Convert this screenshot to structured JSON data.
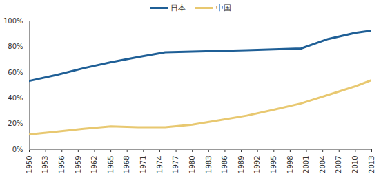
{
  "chart_data": {
    "type": "line",
    "legend": "top",
    "grid": false,
    "x": [
      1950,
      1955,
      1960,
      1965,
      1970,
      1975,
      1980,
      1985,
      1990,
      1995,
      2000,
      2005,
      2010,
      2013
    ],
    "series": [
      {
        "name": "日本",
        "color": "#1f5f96",
        "values": [
          53.4,
          58.0,
          63.3,
          67.9,
          71.9,
          75.7,
          76.2,
          76.7,
          77.3,
          78.0,
          78.6,
          86.0,
          90.8,
          92.5
        ]
      },
      {
        "name": "中国",
        "color": "#e8c870",
        "values": [
          11.8,
          13.9,
          16.2,
          18.1,
          17.4,
          17.4,
          19.4,
          22.9,
          26.4,
          31.0,
          35.9,
          42.5,
          49.2,
          54.0
        ]
      }
    ],
    "xlim": [
      1950,
      2013
    ],
    "xticks": [
      1950,
      1953,
      1956,
      1959,
      1962,
      1965,
      1968,
      1971,
      1974,
      1977,
      1980,
      1983,
      1986,
      1989,
      1992,
      1995,
      1998,
      2001,
      2004,
      2007,
      2010,
      2013
    ],
    "ylim": [
      0,
      100
    ],
    "yticks": [
      {
        "value": 0,
        "label": "0%"
      },
      {
        "value": 20,
        "label": "20%"
      },
      {
        "value": 40,
        "label": "40%"
      },
      {
        "value": 60,
        "label": "60%"
      },
      {
        "value": 80,
        "label": "80%"
      },
      {
        "value": 100,
        "label": "100%"
      }
    ]
  }
}
